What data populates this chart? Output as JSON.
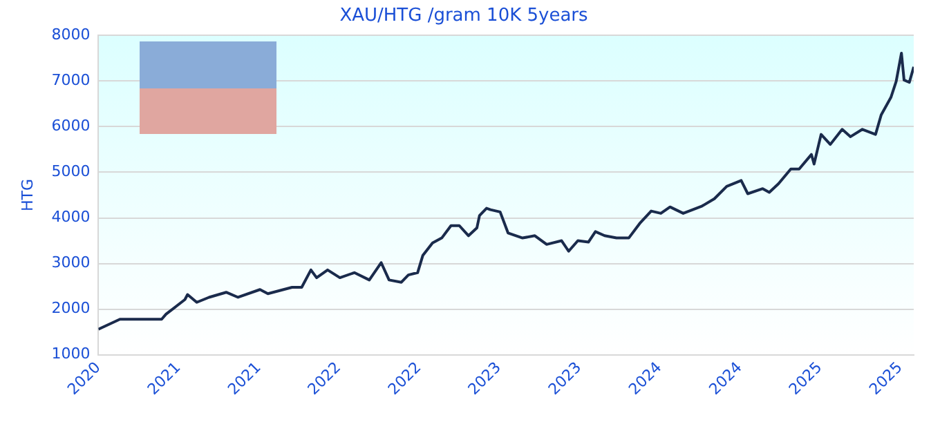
{
  "chart_data": {
    "type": "line",
    "title": "XAU/HTG /gram 10K 5years",
    "ylabel": "HTG",
    "xlim": [
      "2020-10-01",
      "2025-11-01"
    ],
    "xticks": [
      {
        "value": "2020-10-01",
        "label": "2020"
      },
      {
        "value": "2021-04-01",
        "label": "2021"
      },
      {
        "value": "2021-10-01",
        "label": "2021"
      },
      {
        "value": "2022-04-01",
        "label": "2022"
      },
      {
        "value": "2022-10-01",
        "label": "2022"
      },
      {
        "value": "2023-04-01",
        "label": "2023"
      },
      {
        "value": "2023-10-01",
        "label": "2023"
      },
      {
        "value": "2024-04-01",
        "label": "2024"
      },
      {
        "value": "2024-10-01",
        "label": "2024"
      },
      {
        "value": "2025-04-01",
        "label": "2025"
      },
      {
        "value": "2025-10-01",
        "label": "2025"
      }
    ],
    "ylim": [
      1000,
      8000
    ],
    "yticks": [
      1000,
      2000,
      3000,
      4000,
      5000,
      6000,
      7000,
      8000
    ],
    "grid": "y",
    "marker": "none",
    "line_style": "solid",
    "series": [
      {
        "color": "#1a2b4c",
        "x": [
          "2020-10-01",
          "2020-11-19",
          "2020-12-28",
          "2021-02-22",
          "2021-03-04",
          "2021-04-16",
          "2021-04-22",
          "2021-05-13",
          "2021-06-10",
          "2021-07-19",
          "2021-08-15",
          "2021-10-04",
          "2021-10-22",
          "2021-12-16",
          "2022-01-07",
          "2022-01-28",
          "2022-02-10",
          "2022-03-07",
          "2022-04-04",
          "2022-05-07",
          "2022-06-10",
          "2022-07-07",
          "2022-07-25",
          "2022-08-22",
          "2022-09-07",
          "2022-09-28",
          "2022-10-10",
          "2022-11-01",
          "2022-11-22",
          "2022-12-13",
          "2023-01-01",
          "2023-01-22",
          "2023-02-10",
          "2023-02-16",
          "2023-03-04",
          "2023-03-13",
          "2023-04-04",
          "2023-04-22",
          "2023-05-25",
          "2023-06-22",
          "2023-07-19",
          "2023-08-22",
          "2023-09-07",
          "2023-09-28",
          "2023-10-22",
          "2023-11-07",
          "2023-11-28",
          "2023-12-25",
          "2024-01-22",
          "2024-02-16",
          "2024-03-13",
          "2024-04-04",
          "2024-04-25",
          "2024-05-25",
          "2024-07-07",
          "2024-08-04",
          "2024-09-01",
          "2024-10-04",
          "2024-10-19",
          "2024-11-22",
          "2024-12-07",
          "2024-12-28",
          "2025-01-25",
          "2025-02-13",
          "2025-03-13",
          "2025-03-19",
          "2025-04-04",
          "2025-04-25",
          "2025-05-22",
          "2025-06-10",
          "2025-07-07",
          "2025-08-06",
          "2025-08-19",
          "2025-09-10",
          "2025-09-22",
          "2025-10-04",
          "2025-10-10",
          "2025-10-22",
          "2025-11-01"
        ],
        "values": [
          1560,
          1780,
          1780,
          1780,
          1890,
          2210,
          2320,
          2150,
          2260,
          2370,
          2260,
          2430,
          2340,
          2480,
          2480,
          2860,
          2690,
          2860,
          2690,
          2800,
          2640,
          3020,
          2640,
          2590,
          2750,
          2800,
          3180,
          3450,
          3560,
          3830,
          3830,
          3610,
          3780,
          4050,
          4210,
          4180,
          4130,
          3670,
          3560,
          3610,
          3420,
          3500,
          3270,
          3500,
          3470,
          3700,
          3610,
          3560,
          3560,
          3880,
          4150,
          4100,
          4240,
          4100,
          4260,
          4420,
          4690,
          4820,
          4530,
          4640,
          4560,
          4750,
          5070,
          5070,
          5390,
          5180,
          5830,
          5610,
          5940,
          5780,
          5940,
          5830,
          6260,
          6640,
          6990,
          7610,
          7020,
          6970,
          7310
        ]
      }
    ]
  }
}
